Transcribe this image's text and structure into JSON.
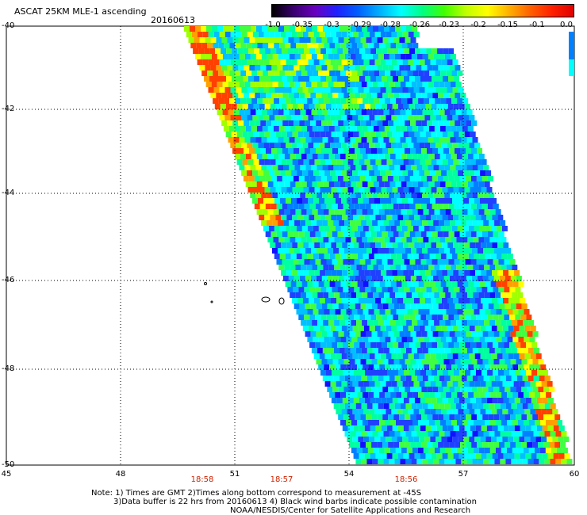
{
  "title": "ASCAT 25KM MLE-1 ascending",
  "date": "20160613",
  "colorbar": {
    "labels": [
      "-1.0",
      "-0.35",
      "-0.3",
      "-0.29",
      "-0.28",
      "-0.26",
      "-0.23",
      "-0.2",
      "-0.15",
      "-0.1",
      "0.0"
    ],
    "colors": [
      "#000000",
      "#3a0070",
      "#6a00c0",
      "#2020ff",
      "#0060ff",
      "#00b0ff",
      "#00ffff",
      "#00ff80",
      "#40ff00",
      "#c0ff00",
      "#ffff00",
      "#ffb000",
      "#ff6000",
      "#ff2000",
      "#e00000"
    ]
  },
  "axes": {
    "lat_labels": [
      "-40",
      "-42",
      "-44",
      "-46",
      "-48",
      "-50"
    ],
    "lon_labels": [
      "45",
      "48",
      "51",
      "54",
      "57",
      "60"
    ]
  },
  "times": [
    "18:58",
    "18:57",
    "18:56"
  ],
  "notes": [
    "Note: 1) Times are GMT 2)Times along bottom correspond to measurement at -45S",
    "3)Data buffer is 22 hrs from 20160613 4) Black wind barbs indicate possible contamination",
    "NOAA/NESDIS/Center for Satellite Applications and Research"
  ]
}
